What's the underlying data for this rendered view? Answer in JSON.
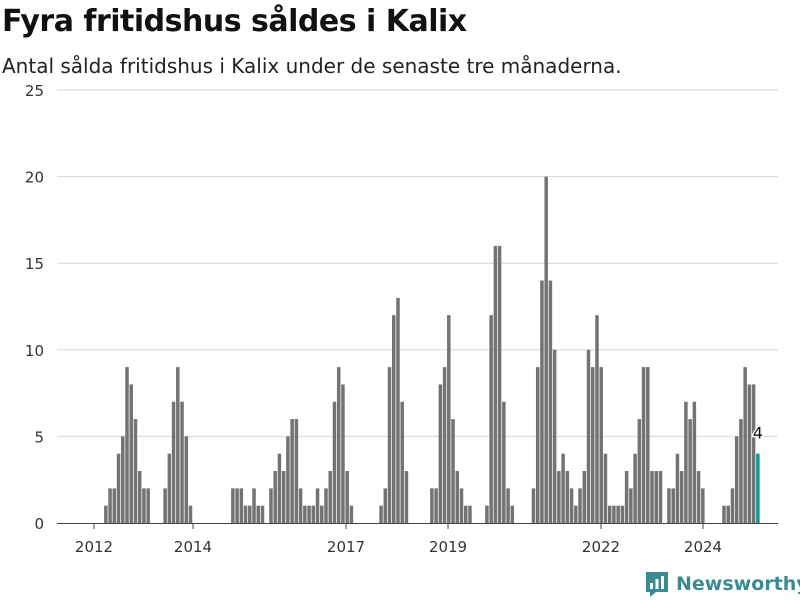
{
  "title": "Fyra fritidshus såldes i Kalix",
  "subtitle": "Antal sålda fritidshus i Kalix under de senaste tre månaderna.",
  "brand": {
    "name": "Newsworthy"
  },
  "colors": {
    "bar": "#737275",
    "highlight": "#16938e",
    "grid": "#d6d6d6",
    "axis": "#444444",
    "brand": "#3a8b8f"
  },
  "chart_data": {
    "type": "bar",
    "title": "Fyra fritidshus såldes i Kalix",
    "ylim": [
      0,
      25
    ],
    "yticks": [
      0,
      5,
      10,
      15,
      20,
      25
    ],
    "xticks": [
      "2012",
      "2014",
      "2017",
      "2019",
      "2022",
      "2024"
    ],
    "grid": true,
    "highlight_label": "4",
    "series": [
      {
        "values": [
          0,
          0,
          0,
          0,
          0,
          0,
          0,
          0,
          0,
          0,
          1,
          2,
          2,
          4,
          5,
          9,
          8,
          6,
          3,
          2,
          2,
          0,
          0,
          0,
          2,
          4,
          7,
          9,
          7,
          5,
          1,
          0,
          0,
          0,
          0,
          0,
          0,
          0,
          0,
          0,
          2,
          2,
          2,
          1,
          1,
          2,
          1,
          1,
          0,
          2,
          3,
          4,
          3,
          5,
          6,
          6,
          2,
          1,
          1,
          1,
          2,
          1,
          2,
          3,
          7,
          9,
          8,
          3,
          1,
          0,
          0,
          0,
          0,
          0,
          0,
          1,
          2,
          9,
          12,
          13,
          7,
          3,
          0,
          0,
          0,
          0,
          0,
          2,
          2,
          8,
          9,
          12,
          6,
          3,
          2,
          1,
          1,
          0,
          0,
          0,
          1,
          12,
          16,
          16,
          7,
          2,
          1,
          0,
          0,
          0,
          0,
          2,
          9,
          14,
          20,
          14,
          10,
          3,
          4,
          3,
          2,
          1,
          2,
          3,
          10,
          9,
          12,
          9,
          4,
          1,
          1,
          1,
          1,
          3,
          2,
          4,
          6,
          9,
          9,
          3,
          3,
          3,
          0,
          2,
          2,
          4,
          3,
          7,
          6,
          7,
          3,
          2,
          0,
          0,
          0,
          0,
          1,
          1,
          2,
          5,
          6,
          9,
          8,
          8,
          4
        ]
      }
    ]
  }
}
